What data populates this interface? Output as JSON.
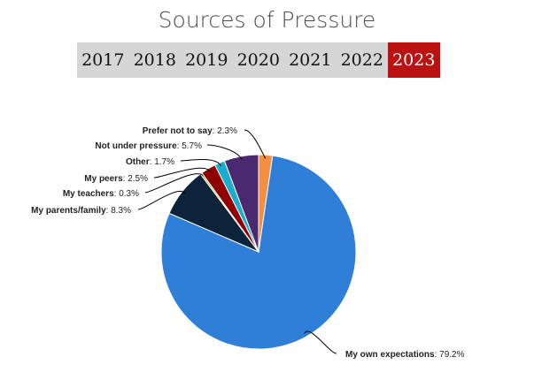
{
  "title": "Sources of Pressure",
  "years": [
    "2017",
    "2018",
    "2019",
    "2020",
    "2021",
    "2022",
    "2023"
  ],
  "selected_year": "2023",
  "chart_data": {
    "type": "pie",
    "title": "Sources of Pressure",
    "start_category": "Prefer not to say",
    "direction": "clockwise",
    "slices": [
      {
        "name": "Prefer not to say",
        "value": 2.3,
        "value_label": "2.3%",
        "color": "#f28f43"
      },
      {
        "name": "My own expectations",
        "value": 79.2,
        "value_label": "79.2%",
        "color": "#2f7ed8"
      },
      {
        "name": "My parents/family",
        "value": 8.3,
        "value_label": "8.3%",
        "color": "#0d233a"
      },
      {
        "name": "My teachers",
        "value": 0.3,
        "value_label": "0.3%",
        "color": "#8bbc21"
      },
      {
        "name": "My peers",
        "value": 2.5,
        "value_label": "2.5%",
        "color": "#910000"
      },
      {
        "name": "Other",
        "value": 1.7,
        "value_label": "1.7%",
        "color": "#1aadce"
      },
      {
        "name": "Not under pressure",
        "value": 5.7,
        "value_label": "5.7%",
        "color": "#492970"
      }
    ]
  }
}
